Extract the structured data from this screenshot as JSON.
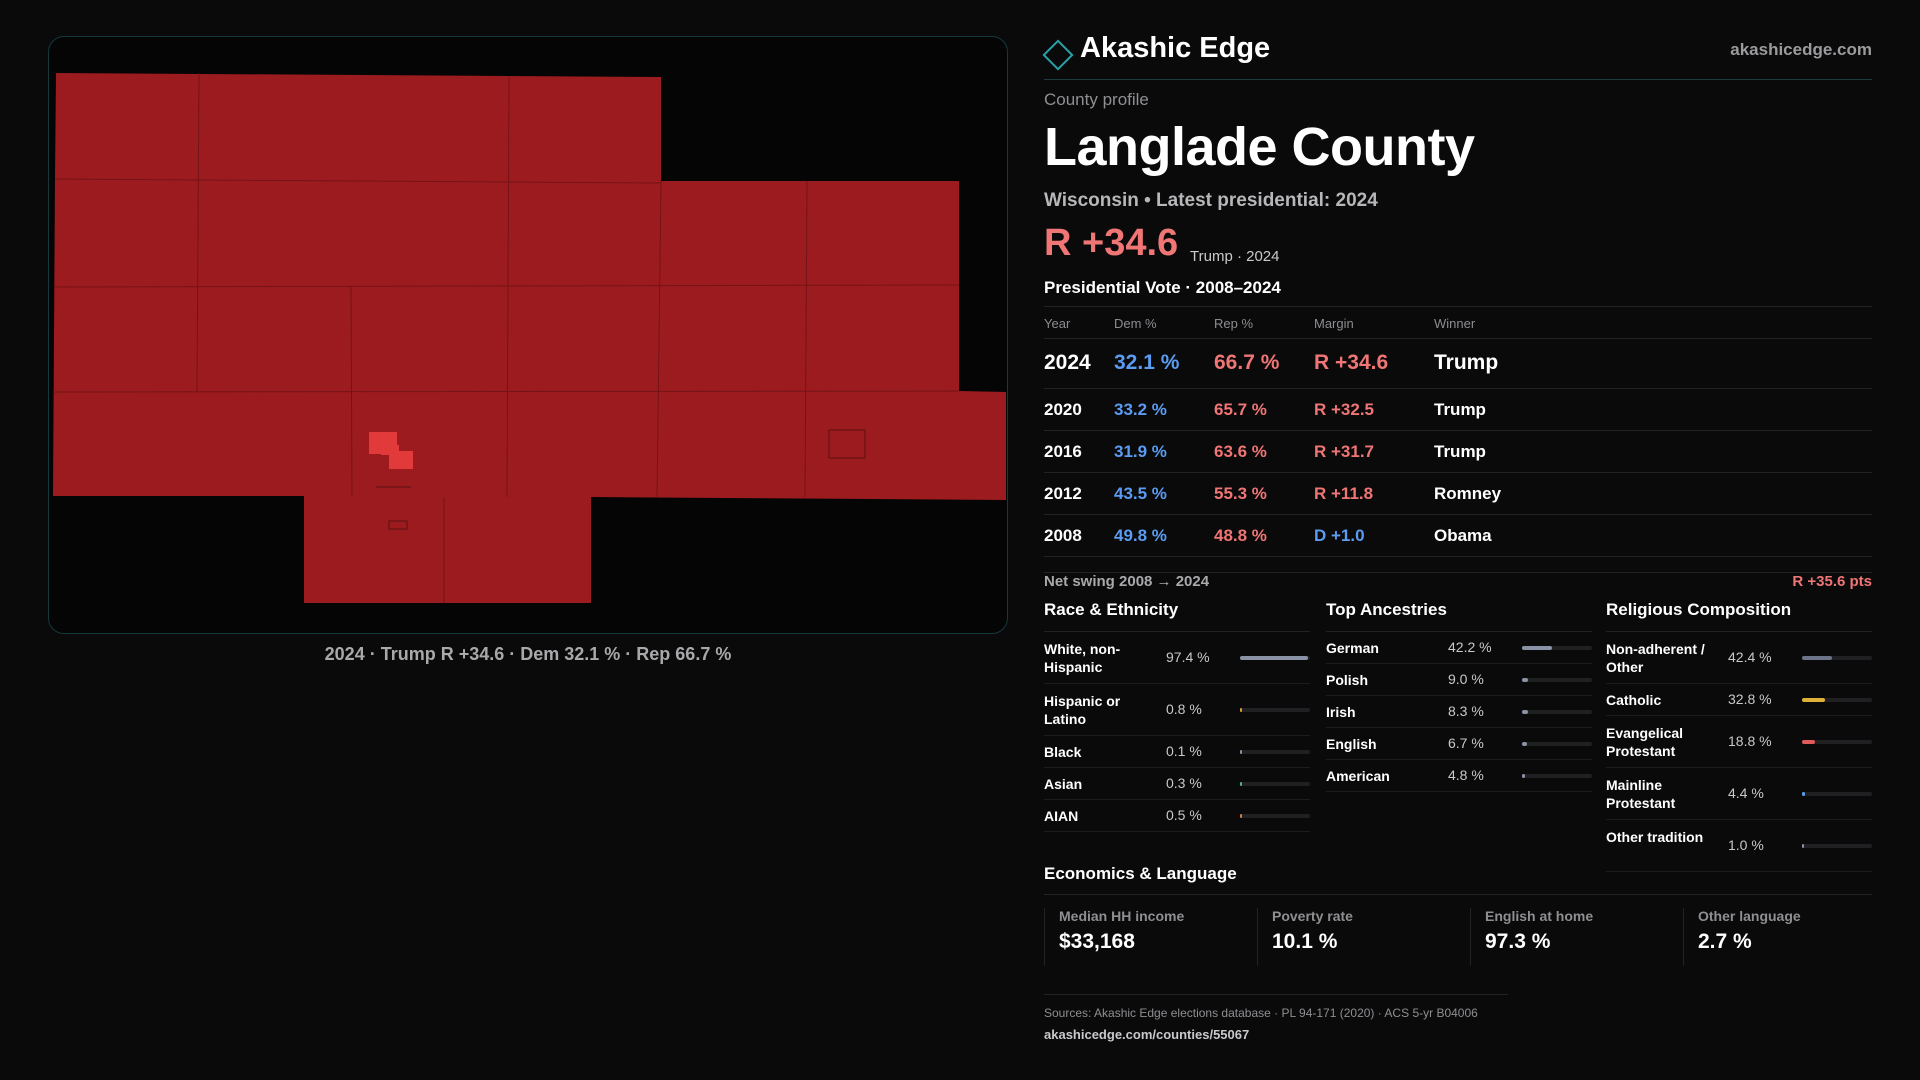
{
  "brand": {
    "name": "Akashic Edge",
    "url": "akashicedge.com"
  },
  "profile": {
    "eyebrow": "County profile",
    "county": "Langlade County",
    "subline": "Wisconsin • Latest presidential: 2024",
    "margin": "R +34.6",
    "margin_note": "Trump · 2024"
  },
  "map": {
    "caption": "2024 · Trump R +34.6 · Dem 32.1 % · Rep 66.7 %",
    "fill_color": "#9c1b1f",
    "highlight_color": "#e23a3a"
  },
  "vote": {
    "title": "Presidential Vote · 2008–2024",
    "headers": [
      "Year",
      "Dem %",
      "Rep %",
      "Margin",
      "Winner"
    ],
    "rows": [
      {
        "year": "2024",
        "dem": "32.1 %",
        "rep": "66.7 %",
        "margin": "R +34.6",
        "winner": "Trump",
        "margin_party": "R"
      },
      {
        "year": "2020",
        "dem": "33.2 %",
        "rep": "65.7 %",
        "margin": "R +32.5",
        "winner": "Trump",
        "margin_party": "R"
      },
      {
        "year": "2016",
        "dem": "31.9 %",
        "rep": "63.6 %",
        "margin": "R +31.7",
        "winner": "Trump",
        "margin_party": "R"
      },
      {
        "year": "2012",
        "dem": "43.5 %",
        "rep": "55.3 %",
        "margin": "R +11.8",
        "winner": "Romney",
        "margin_party": "R"
      },
      {
        "year": "2008",
        "dem": "49.8 %",
        "rep": "48.8 %",
        "margin": "D +1.0",
        "winner": "Obama",
        "margin_party": "D"
      }
    ],
    "swing_label": "Net swing 2008 → 2024",
    "swing_value": "R +35.6 pts"
  },
  "race": {
    "title": "Race & Ethnicity",
    "items": [
      {
        "label": "White, non-Hispanic",
        "value": "97.4 %",
        "pct": 97.4,
        "color": "#8a93a5"
      },
      {
        "label": "Hispanic or Latino",
        "value": "0.8 %",
        "pct": 0.8,
        "color": "#d99a3a"
      },
      {
        "label": "Black",
        "value": "0.1 %",
        "pct": 0.1,
        "color": "#8a93a5"
      },
      {
        "label": "Asian",
        "value": "0.3 %",
        "pct": 0.3,
        "color": "#4fb39a"
      },
      {
        "label": "AIAN",
        "value": "0.5 %",
        "pct": 0.5,
        "color": "#d97a3a"
      }
    ]
  },
  "ancestry": {
    "title": "Top Ancestries",
    "items": [
      {
        "label": "German",
        "value": "42.2 %",
        "pct": 42.2,
        "color": "#8a93a5"
      },
      {
        "label": "Polish",
        "value": "9.0 %",
        "pct": 9.0,
        "color": "#8a93a5"
      },
      {
        "label": "Irish",
        "value": "8.3 %",
        "pct": 8.3,
        "color": "#8a93a5"
      },
      {
        "label": "English",
        "value": "6.7 %",
        "pct": 6.7,
        "color": "#8a93a5"
      },
      {
        "label": "American",
        "value": "4.8 %",
        "pct": 4.8,
        "color": "#8a93a5"
      }
    ]
  },
  "religion": {
    "title": "Religious Composition",
    "items": [
      {
        "label": "Non-adherent / Other",
        "value": "42.4 %",
        "pct": 42.4,
        "color": "#6b7488"
      },
      {
        "label": "Catholic",
        "value": "32.8 %",
        "pct": 32.8,
        "color": "#e0b13a"
      },
      {
        "label": "Evangelical Protestant",
        "value": "18.8 %",
        "pct": 18.8,
        "color": "#e05a5a"
      },
      {
        "label": "Mainline Protestant",
        "value": "4.4 %",
        "pct": 4.4,
        "color": "#5b9cf2"
      },
      {
        "label": "Other tradition",
        "value": "1.0 %",
        "pct": 1.0,
        "color": "#8a93a5"
      }
    ]
  },
  "economics": {
    "title": "Economics & Language",
    "items": [
      {
        "label": "Median HH income",
        "value": "$33,168"
      },
      {
        "label": "Poverty rate",
        "value": "10.1 %"
      },
      {
        "label": "English at home",
        "value": "97.3 %"
      },
      {
        "label": "Other language",
        "value": "2.7 %"
      }
    ]
  },
  "sources": {
    "text": "Sources: Akashic Edge elections database · PL 94-171 (2020) · ACS 5-yr B04006",
    "url": "akashicedge.com/counties/55067"
  }
}
